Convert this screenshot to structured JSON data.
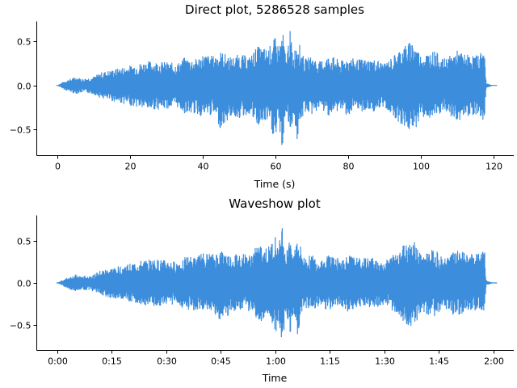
{
  "colors": {
    "wave": "#3c8ddc"
  },
  "chart_data": [
    {
      "type": "area",
      "title": "Direct plot, 5286528 samples",
      "xlabel": "Time (s)",
      "ylabel": "",
      "xlim": [
        -5.6,
        125.6
      ],
      "ylim": [
        -0.8,
        0.73
      ],
      "x_ticks": [
        0,
        20,
        40,
        60,
        80,
        100,
        120
      ],
      "x_tick_labels": [
        "0",
        "20",
        "40",
        "60",
        "80",
        "100",
        "120"
      ],
      "y_ticks": [
        -0.5,
        0.0,
        0.5
      ],
      "y_tick_labels": [
        "−0.5",
        "0.0",
        "0.5"
      ],
      "grid": false,
      "series": [
        {
          "envelope": {
            "x": [
              0,
              2,
              5,
              7,
              10,
              12,
              15,
              20,
              25,
              30,
              33,
              35,
              38,
              40,
              43,
              45,
              48,
              50,
              53,
              55,
              58,
              60,
              61,
              62,
              63,
              64,
              65,
              66,
              68,
              70,
              72,
              75,
              78,
              80,
              82,
              85,
              88,
              90,
              92,
              95,
              98,
              100,
              102,
              104,
              106,
              108,
              110,
              112,
              114,
              116,
              117,
              117.6,
              118,
              120
            ],
            "upper": [
              0.0,
              0.05,
              0.1,
              0.08,
              0.1,
              0.15,
              0.18,
              0.23,
              0.28,
              0.27,
              0.25,
              0.32,
              0.3,
              0.36,
              0.34,
              0.39,
              0.32,
              0.36,
              0.33,
              0.45,
              0.42,
              0.55,
              0.45,
              0.64,
              0.3,
              0.65,
              0.34,
              0.56,
              0.3,
              0.34,
              0.27,
              0.35,
              0.28,
              0.33,
              0.3,
              0.3,
              0.3,
              0.25,
              0.32,
              0.45,
              0.52,
              0.35,
              0.38,
              0.4,
              0.3,
              0.34,
              0.4,
              0.36,
              0.35,
              0.35,
              0.44,
              0.36,
              0.03,
              0.0
            ],
            "lower": [
              0.0,
              -0.05,
              -0.1,
              -0.08,
              -0.1,
              -0.15,
              -0.18,
              -0.23,
              -0.28,
              -0.27,
              -0.25,
              -0.32,
              -0.33,
              -0.36,
              -0.34,
              -0.5,
              -0.35,
              -0.38,
              -0.33,
              -0.48,
              -0.42,
              -0.66,
              -0.45,
              -0.77,
              -0.3,
              -0.6,
              -0.34,
              -0.64,
              -0.3,
              -0.34,
              -0.27,
              -0.35,
              -0.28,
              -0.35,
              -0.3,
              -0.3,
              -0.3,
              -0.25,
              -0.33,
              -0.47,
              -0.55,
              -0.36,
              -0.38,
              -0.4,
              -0.3,
              -0.36,
              -0.42,
              -0.36,
              -0.34,
              -0.33,
              -0.4,
              -0.38,
              -0.03,
              0.0
            ]
          }
        }
      ]
    },
    {
      "type": "area",
      "title": "Waveshow plot",
      "xlabel": "Time",
      "ylabel": "",
      "xlim": [
        -5.6,
        125.6
      ],
      "ylim": [
        -0.8,
        0.8
      ],
      "x_ticks": [
        0,
        15,
        30,
        45,
        60,
        75,
        90,
        105,
        120
      ],
      "x_tick_labels": [
        "0:00",
        "0:15",
        "0:30",
        "0:45",
        "1:00",
        "1:15",
        "1:30",
        "1:45",
        "2:00"
      ],
      "y_ticks": [
        -0.5,
        0.0,
        0.5
      ],
      "y_tick_labels": [
        "−0.5",
        "0.0",
        "0.5"
      ],
      "grid": false,
      "series": [
        {
          "envelope": {
            "x": [
              0,
              2,
              5,
              7,
              10,
              12,
              15,
              20,
              25,
              30,
              33,
              35,
              38,
              40,
              43,
              45,
              48,
              50,
              53,
              55,
              58,
              60,
              61,
              62,
              63,
              64,
              65,
              66,
              68,
              70,
              72,
              75,
              78,
              80,
              82,
              85,
              88,
              90,
              92,
              95,
              98,
              100,
              102,
              104,
              106,
              108,
              110,
              112,
              114,
              116,
              117,
              117.6,
              118,
              120
            ],
            "upper": [
              0.0,
              0.05,
              0.1,
              0.08,
              0.1,
              0.15,
              0.18,
              0.23,
              0.28,
              0.27,
              0.25,
              0.32,
              0.3,
              0.36,
              0.34,
              0.39,
              0.32,
              0.36,
              0.33,
              0.45,
              0.42,
              0.55,
              0.45,
              0.73,
              0.3,
              0.7,
              0.34,
              0.56,
              0.3,
              0.34,
              0.27,
              0.35,
              0.28,
              0.33,
              0.3,
              0.3,
              0.3,
              0.25,
              0.32,
              0.45,
              0.52,
              0.35,
              0.38,
              0.4,
              0.3,
              0.34,
              0.4,
              0.36,
              0.35,
              0.35,
              0.5,
              0.36,
              0.03,
              0.0
            ],
            "lower": [
              0.0,
              -0.05,
              -0.1,
              -0.08,
              -0.1,
              -0.15,
              -0.18,
              -0.23,
              -0.28,
              -0.27,
              -0.25,
              -0.32,
              -0.33,
              -0.36,
              -0.34,
              -0.5,
              -0.35,
              -0.38,
              -0.33,
              -0.48,
              -0.42,
              -0.66,
              -0.45,
              -0.75,
              -0.3,
              -0.64,
              -0.34,
              -0.64,
              -0.3,
              -0.34,
              -0.27,
              -0.35,
              -0.28,
              -0.35,
              -0.3,
              -0.3,
              -0.3,
              -0.25,
              -0.33,
              -0.47,
              -0.55,
              -0.36,
              -0.38,
              -0.4,
              -0.3,
              -0.36,
              -0.42,
              -0.36,
              -0.34,
              -0.33,
              -0.5,
              -0.38,
              -0.03,
              0.0
            ]
          }
        }
      ]
    }
  ]
}
